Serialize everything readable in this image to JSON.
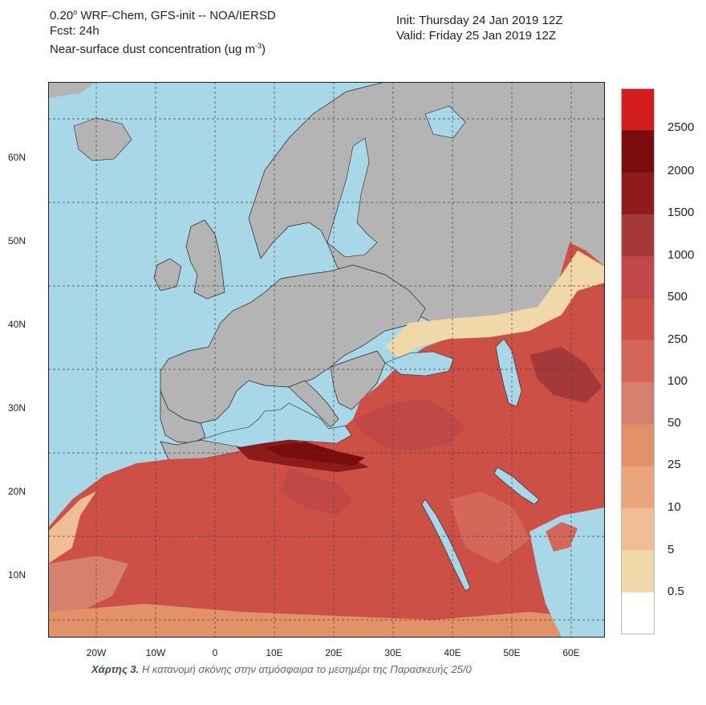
{
  "header": {
    "model_prefix": "0.20",
    "model_suffix": " WRF-Chem, GFS-init -- NOA/IERSD",
    "forecast": "Fcst: 24h",
    "variable_prefix": "Near-surface dust concentration (ug m",
    "variable_exp": "-3",
    "variable_suffix": ")",
    "init": "Init: Thursday 24 Jan 2019  12Z",
    "valid": "Valid: Friday 25 Jan 2019  12Z"
  },
  "map": {
    "lat_labels": [
      "60N",
      "50N",
      "40N",
      "30N",
      "20N",
      "10N"
    ],
    "lon_labels": [
      "20W",
      "10W",
      "0",
      "10E",
      "20E",
      "30E",
      "40E",
      "50E",
      "60E"
    ],
    "colors": {
      "sea": "#a8d8e8",
      "land_no_dust": "#b4b4b4",
      "grid": "#444444"
    }
  },
  "legend": {
    "labels": [
      "2500",
      "2000",
      "1500",
      "1000",
      "500",
      "250",
      "100",
      "50",
      "25",
      "10",
      "5",
      "0.5"
    ],
    "colors": [
      "#d41e1e",
      "#7a0c0c",
      "#8e1a1a",
      "#a53838",
      "#c24848",
      "#cc5046",
      "#d4665a",
      "#d68070",
      "#e29266",
      "#e9a67a",
      "#efbe96",
      "#f1d8a8",
      "#ffffff"
    ]
  },
  "caption": {
    "bold": "Χάρτης 3.",
    "text": " Η κατανομή σκόνης στην ατμόσφαιρα το μεσημέρι της Παρασκευής 25/0"
  }
}
